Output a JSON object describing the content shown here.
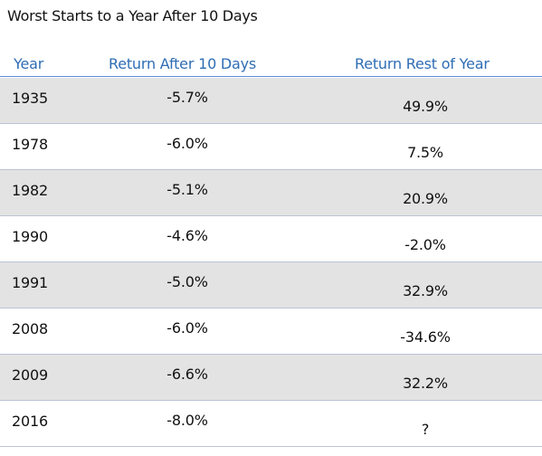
{
  "title": "Worst Starts to a Year After 10 Days",
  "chart_data": {
    "type": "table",
    "title": "Worst Starts to a Year After 10 Days",
    "columns": [
      "Year",
      "Return After 10 Days",
      "Return Rest of Year"
    ],
    "rows": [
      [
        "1935",
        "-5.7%",
        "49.9%"
      ],
      [
        "1978",
        "-6.0%",
        "7.5%"
      ],
      [
        "1982",
        "-5.1%",
        "20.9%"
      ],
      [
        "1990",
        "-4.6%",
        "-2.0%"
      ],
      [
        "1991",
        "-5.0%",
        "32.9%"
      ],
      [
        "2008",
        "-6.0%",
        "-34.6%"
      ],
      [
        "2009",
        "-6.6%",
        "32.2%"
      ],
      [
        "2016",
        "-8.0%",
        "?"
      ]
    ]
  },
  "colors": {
    "header_text": "#2e6db4",
    "header_rule": "#5b8bd6",
    "row_shade": "#e3e3e3",
    "row_rule": "#b9c4d6"
  }
}
